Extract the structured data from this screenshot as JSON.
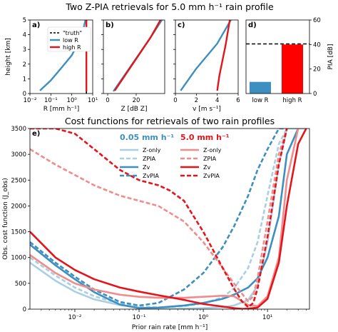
{
  "figure": {
    "title_top": "Two Z-PIA retrievals for 5.0 mm h⁻¹ rain profile",
    "title_bottom": "Cost functions for retrievals of two rain profiles"
  },
  "colors": {
    "blue": "#3d8fbf",
    "light_blue": "#a9cfe3",
    "red": "#e3151b",
    "light_red": "#f08c8c",
    "black": "#000000"
  },
  "chart_data": [
    {
      "panel": "a)",
      "type": "line",
      "xlabel": "R [mm h⁻¹]",
      "ylabel": "height [km]",
      "xscale": "log",
      "xlim": [
        0.01,
        10
      ],
      "ylim": [
        0,
        5
      ],
      "xticks": [
        "10⁻²",
        "10⁻¹",
        "10⁰",
        "10¹"
      ],
      "yticks": [
        "0",
        "1",
        "2",
        "3",
        "4",
        "5"
      ],
      "legend": {
        "placement": "center",
        "entries": [
          "\"truth\"",
          "low R",
          "high R"
        ]
      },
      "series": [
        {
          "name": "\"truth\"",
          "style": "dashed",
          "color": "#000000",
          "x": [
            5,
            5
          ],
          "y": [
            0,
            5
          ]
        },
        {
          "name": "low R",
          "style": "solid",
          "color": "#3d8fbf",
          "x": [
            0.03,
            0.1,
            0.3,
            1,
            3,
            4.5
          ],
          "y": [
            0.2,
            0.9,
            1.7,
            2.6,
            3.9,
            5
          ]
        },
        {
          "name": "high R",
          "style": "solid",
          "color": "#e3151b",
          "x": [
            5,
            5
          ],
          "y": [
            0.15,
            5
          ]
        }
      ]
    },
    {
      "panel": "b)",
      "type": "line",
      "xlabel": "Z [dB Z]",
      "xlim": [
        -3,
        40
      ],
      "ylim": [
        0,
        5
      ],
      "xticks": [
        "0",
        "20"
      ],
      "series": [
        {
          "name": "\"truth\"",
          "style": "dashed",
          "color": "#000000",
          "x": [
            5,
            30,
            37
          ],
          "y": [
            0.2,
            3.8,
            5
          ]
        },
        {
          "name": "low R",
          "style": "solid",
          "color": "#3d8fbf",
          "x": [
            4,
            30,
            38
          ],
          "y": [
            0.15,
            3.8,
            5
          ]
        },
        {
          "name": "high R",
          "style": "solid",
          "color": "#e3151b",
          "x": [
            5,
            30,
            37
          ],
          "y": [
            0.2,
            3.8,
            5
          ]
        }
      ]
    },
    {
      "panel": "c)",
      "type": "line",
      "xlabel": "v [m s⁻¹]",
      "xlim": [
        0,
        6
      ],
      "ylim": [
        0,
        5
      ],
      "xticks": [
        "0",
        "2",
        "4",
        "6"
      ],
      "series": [
        {
          "name": "\"truth\"",
          "style": "dashed",
          "color": "#000000",
          "x": [
            4.0,
            4.2,
            4.8,
            5.2
          ],
          "y": [
            0.2,
            1.2,
            3.3,
            5
          ]
        },
        {
          "name": "low R",
          "style": "solid",
          "color": "#3d8fbf",
          "x": [
            0.5,
            2.0,
            4.0,
            5.3
          ],
          "y": [
            0.2,
            1.7,
            3.4,
            5
          ]
        },
        {
          "name": "high R",
          "style": "solid",
          "color": "#e3151b",
          "x": [
            4.0,
            4.2,
            4.8,
            5.2
          ],
          "y": [
            0.2,
            1.2,
            3.3,
            5
          ]
        }
      ]
    },
    {
      "panel": "d)",
      "type": "bar",
      "ylabel": "PIA [dB]",
      "categories": [
        "low R",
        "high R"
      ],
      "values": [
        9.5,
        40
      ],
      "colors": [
        "#3d8fbf",
        "#ff0000"
      ],
      "truth_line": 40.5,
      "ylim": [
        0,
        60
      ],
      "yticks": [
        "0",
        "20",
        "40",
        "60"
      ]
    },
    {
      "panel": "e)",
      "type": "line",
      "xlabel": "Prior rain rate [mm h⁻¹]",
      "ylabel": "Obs. cost function (J_obs)",
      "xscale": "log",
      "xlim": [
        0.002,
        45
      ],
      "ylim": [
        0,
        3500
      ],
      "xticks": [
        "10⁻²",
        "10⁻¹",
        "10⁰",
        "10¹"
      ],
      "yticks": [
        "0",
        "500",
        "1000",
        "1500",
        "2000",
        "2500",
        "3000",
        "3500"
      ],
      "legend": {
        "placement": "top-center",
        "headers": [
          "0.05 mm h⁻¹",
          "5.0 mm h⁻¹"
        ],
        "entries": [
          "Z-only",
          "ZPIA",
          "Zv",
          "ZvPIA",
          "Z-only",
          "ZPIA",
          "Zv",
          "ZvPIA"
        ]
      },
      "series": [
        {
          "name": "Z-only",
          "color": "#a9cfe3",
          "style": "solid",
          "x": [
            0.002,
            0.005,
            0.01,
            0.02,
            0.05,
            0.1,
            0.2,
            0.5,
            1,
            2,
            3,
            5,
            7,
            10,
            15,
            20,
            30,
            40
          ],
          "y": [
            900,
            550,
            340,
            190,
            80,
            30,
            5,
            10,
            20,
            40,
            70,
            180,
            450,
            1300,
            2800,
            3500,
            3500,
            3500
          ]
        },
        {
          "name": "ZPIA",
          "color": "#a9cfe3",
          "style": "dashed",
          "x": [
            0.002,
            0.005,
            0.01,
            0.02,
            0.05,
            0.1,
            0.2,
            0.5,
            1,
            2,
            3,
            5,
            7,
            10,
            15,
            20
          ],
          "y": [
            1000,
            650,
            420,
            250,
            110,
            50,
            30,
            60,
            110,
            230,
            400,
            800,
            1300,
            2200,
            3200,
            3500
          ]
        },
        {
          "name": "Zv",
          "color": "#3d8fbf",
          "style": "solid",
          "x": [
            0.002,
            0.005,
            0.01,
            0.02,
            0.05,
            0.1,
            0.2,
            0.5,
            1,
            2,
            3,
            5,
            7,
            10,
            15,
            20,
            30
          ],
          "y": [
            1250,
            850,
            580,
            330,
            90,
            20,
            30,
            70,
            120,
            200,
            280,
            420,
            600,
            1000,
            1800,
            3000,
            3500
          ]
        },
        {
          "name": "ZvPIA",
          "color": "#3d8fbf",
          "style": "dashed",
          "x": [
            0.002,
            0.005,
            0.01,
            0.02,
            0.05,
            0.1,
            0.2,
            0.5,
            1,
            2,
            3,
            5,
            7,
            10,
            15,
            20
          ],
          "y": [
            1300,
            900,
            630,
            380,
            140,
            70,
            120,
            380,
            700,
            1200,
            1600,
            2200,
            2700,
            3100,
            3500,
            3500
          ]
        },
        {
          "name": "Z-only",
          "color": "#f08c8c",
          "style": "solid",
          "x": [
            0.002,
            0.005,
            0.01,
            0.02,
            0.05,
            0.1,
            0.2,
            0.5,
            1,
            2,
            3,
            5,
            7,
            10,
            15,
            20,
            30
          ],
          "y": [
            1050,
            700,
            500,
            380,
            280,
            240,
            220,
            220,
            240,
            260,
            250,
            80,
            60,
            250,
            1000,
            2500,
            3500
          ]
        },
        {
          "name": "ZPIA",
          "color": "#f08c8c",
          "style": "dashed",
          "x": [
            0.002,
            0.005,
            0.01,
            0.02,
            0.05,
            0.1,
            0.2,
            0.5,
            1,
            2,
            3,
            4,
            5,
            6,
            7,
            10,
            15,
            20
          ],
          "y": [
            3100,
            2800,
            2600,
            2400,
            2200,
            2100,
            2000,
            1700,
            1300,
            800,
            500,
            300,
            150,
            250,
            600,
            1700,
            3000,
            3500
          ]
        },
        {
          "name": "Zv",
          "color": "#e3151b",
          "style": "solid",
          "x": [
            0.002,
            0.005,
            0.01,
            0.02,
            0.05,
            0.1,
            0.2,
            0.5,
            1,
            2,
            3,
            4,
            5,
            7,
            10,
            15,
            20,
            30,
            40
          ],
          "y": [
            1500,
            1000,
            760,
            580,
            420,
            340,
            270,
            180,
            100,
            50,
            20,
            5,
            10,
            30,
            200,
            900,
            2000,
            3200,
            3500
          ]
        },
        {
          "name": "ZvPIA",
          "color": "#e3151b",
          "style": "dashed",
          "x": [
            0.002,
            0.005,
            0.01,
            0.02,
            0.05,
            0.1,
            0.2,
            0.3,
            0.5,
            1,
            2,
            3,
            4,
            5,
            6,
            7,
            10,
            15,
            20
          ],
          "y": [
            3500,
            3500,
            3400,
            3100,
            2700,
            2500,
            2400,
            2300,
            2100,
            1500,
            800,
            400,
            150,
            40,
            120,
            400,
            1400,
            2800,
            3500
          ]
        }
      ]
    }
  ]
}
